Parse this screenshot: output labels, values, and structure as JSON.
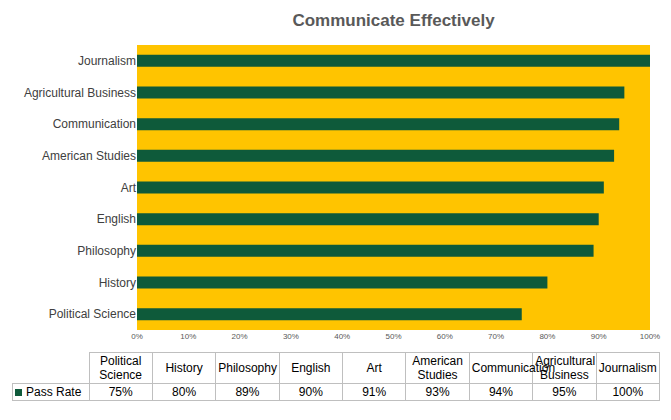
{
  "chart_data": {
    "type": "bar",
    "title": "Communicate Effectively",
    "orientation": "horizontal",
    "categories": [
      "Political Science",
      "History",
      "Philosophy",
      "English",
      "Art",
      "American Studies",
      "Communication",
      "Agricultural Business",
      "Journalism"
    ],
    "series": [
      {
        "name": "Pass Rate",
        "color": "#0E5A3A",
        "values": [
          75,
          80,
          89,
          90,
          91,
          93,
          94,
          95,
          100
        ],
        "value_labels": [
          "75%",
          "80%",
          "89%",
          "90%",
          "91%",
          "93%",
          "94%",
          "95%",
          "100%"
        ]
      }
    ],
    "xlim": [
      0,
      100
    ],
    "xticks": [
      {
        "value": 0,
        "label": "0%"
      },
      {
        "value": 10,
        "label": "10%"
      },
      {
        "value": 20,
        "label": "20%"
      },
      {
        "value": 30,
        "label": "30%"
      },
      {
        "value": 40,
        "label": "40%"
      },
      {
        "value": 50,
        "label": "50%"
      },
      {
        "value": 60,
        "label": "60%"
      },
      {
        "value": 70,
        "label": "70%"
      },
      {
        "value": 80,
        "label": "80%"
      },
      {
        "value": 90,
        "label": "90%"
      },
      {
        "value": 100,
        "label": "100%"
      }
    ],
    "grid": false
  }
}
